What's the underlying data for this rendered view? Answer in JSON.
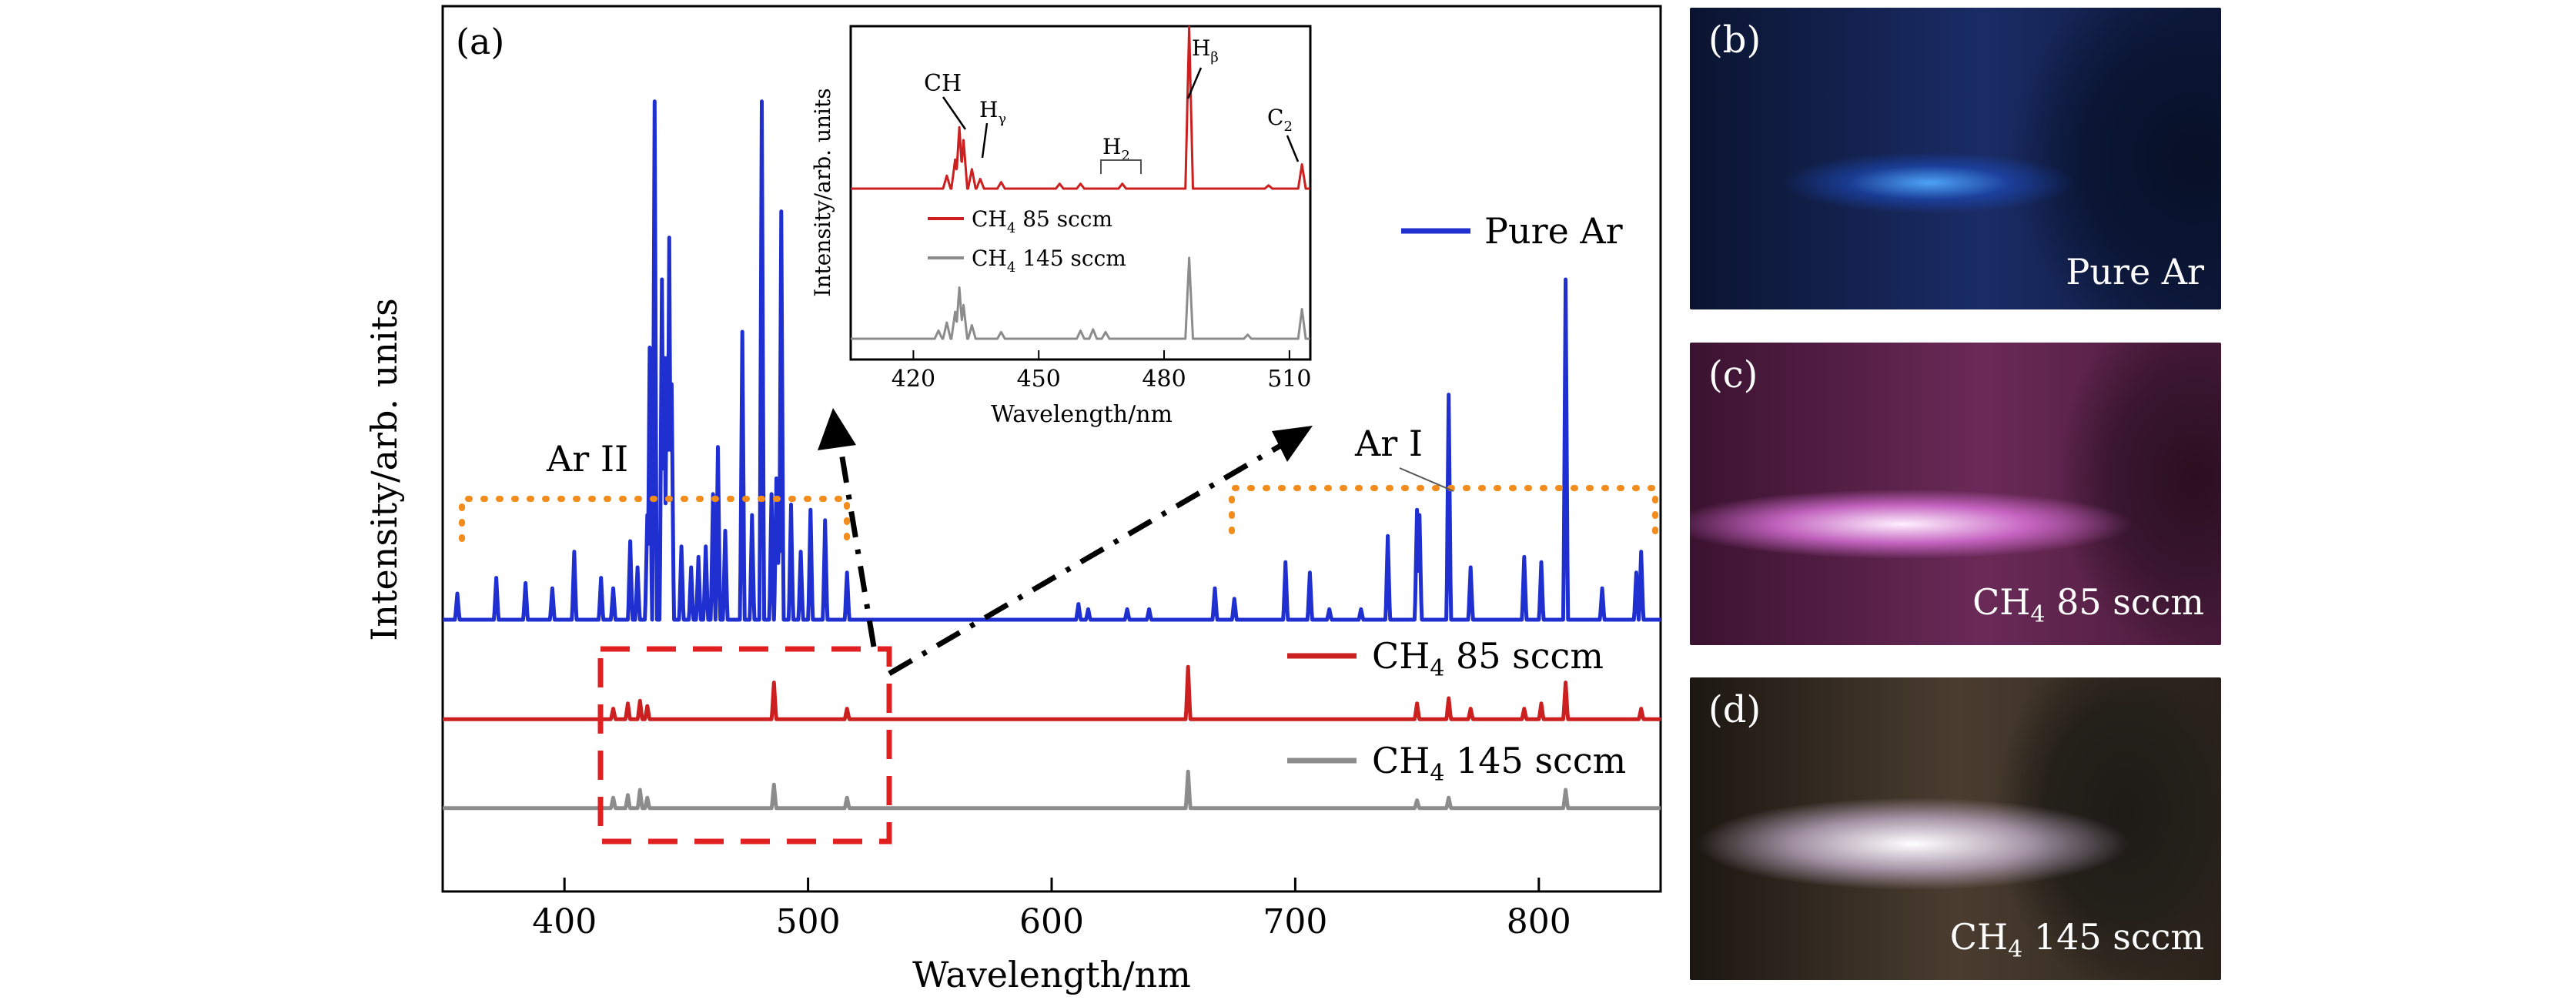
{
  "panel_a": {
    "label": "(a)",
    "chart_data": {
      "type": "line",
      "xlabel": "Wavelength/nm",
      "ylabel": "Intensity/arb. units",
      "xlim": [
        350,
        850
      ],
      "xticks": [
        400,
        500,
        600,
        700,
        800
      ],
      "series": [
        {
          "name": "Pure Ar",
          "color": "#1f2fd0",
          "baseline": 0.0,
          "peaks": [
            [
              356,
              0.05
            ],
            [
              372,
              0.08
            ],
            [
              384,
              0.07
            ],
            [
              395,
              0.06
            ],
            [
              404,
              0.13
            ],
            [
              415,
              0.08
            ],
            [
              420,
              0.06
            ],
            [
              427,
              0.15
            ],
            [
              430,
              0.1
            ],
            [
              434,
              0.2
            ],
            [
              435,
              0.52
            ],
            [
              437,
              0.99
            ],
            [
              440,
              0.65
            ],
            [
              441,
              0.5
            ],
            [
              442,
              0.5
            ],
            [
              443,
              0.73
            ],
            [
              444,
              0.45
            ],
            [
              448,
              0.14
            ],
            [
              452,
              0.1
            ],
            [
              455,
              0.12
            ],
            [
              458,
              0.14
            ],
            [
              461,
              0.24
            ],
            [
              463,
              0.33
            ],
            [
              466,
              0.17
            ],
            [
              473,
              0.55
            ],
            [
              477,
              0.2
            ],
            [
              481,
              0.99
            ],
            [
              485,
              0.24
            ],
            [
              487,
              0.27
            ],
            [
              488,
              0.15
            ],
            [
              489,
              0.78
            ],
            [
              493,
              0.22
            ],
            [
              497,
              0.13
            ],
            [
              501,
              0.21
            ],
            [
              507,
              0.19
            ],
            [
              516,
              0.09
            ],
            [
              611,
              0.03
            ],
            [
              615,
              0.02
            ],
            [
              631,
              0.02
            ],
            [
              640,
              0.02
            ],
            [
              667,
              0.06
            ],
            [
              675,
              0.04
            ],
            [
              696,
              0.11
            ],
            [
              706,
              0.09
            ],
            [
              714,
              0.02
            ],
            [
              727,
              0.02
            ],
            [
              738,
              0.16
            ],
            [
              750,
              0.21
            ],
            [
              751,
              0.2
            ],
            [
              763,
              0.43
            ],
            [
              772,
              0.1
            ],
            [
              794,
              0.12
            ],
            [
              801,
              0.11
            ],
            [
              811,
              0.65
            ],
            [
              826,
              0.06
            ],
            [
              840,
              0.09
            ],
            [
              842,
              0.13
            ]
          ]
        },
        {
          "name": "CH₄ 85 sccm",
          "color": "#cc1f1f",
          "baseline": -0.19,
          "peaks": [
            [
              420,
              0.02
            ],
            [
              426,
              0.03
            ],
            [
              431,
              0.035
            ],
            [
              434,
              0.025
            ],
            [
              486,
              0.07
            ],
            [
              516,
              0.02
            ],
            [
              656,
              0.1
            ],
            [
              750,
              0.03
            ],
            [
              763,
              0.04
            ],
            [
              772,
              0.02
            ],
            [
              794,
              0.02
            ],
            [
              801,
              0.03
            ],
            [
              811,
              0.07
            ],
            [
              842,
              0.02
            ]
          ]
        },
        {
          "name": "CH₄ 145 sccm",
          "color": "#8c8c8c",
          "baseline": -0.36,
          "peaks": [
            [
              420,
              0.02
            ],
            [
              426,
              0.025
            ],
            [
              431,
              0.035
            ],
            [
              434,
              0.02
            ],
            [
              486,
              0.045
            ],
            [
              516,
              0.02
            ],
            [
              656,
              0.07
            ],
            [
              750,
              0.015
            ],
            [
              763,
              0.02
            ],
            [
              811,
              0.035
            ]
          ]
        }
      ],
      "annotations": [
        "Ar II",
        "Ar I"
      ]
    }
  },
  "inset": {
    "chart_data": {
      "type": "line",
      "xlabel": "Wavelength/nm",
      "ylabel": "Intensity/arb. units",
      "xlim": [
        405,
        515
      ],
      "xticks": [
        420,
        450,
        480,
        510
      ],
      "series": [
        {
          "name": "CH₄ 85 sccm",
          "color": "#cc1f1f",
          "baseline": 0.0,
          "peaks": [
            [
              428,
              0.08
            ],
            [
              430,
              0.18
            ],
            [
              431,
              0.38
            ],
            [
              432,
              0.3
            ],
            [
              434,
              0.12
            ],
            [
              436,
              0.06
            ],
            [
              441,
              0.04
            ],
            [
              455,
              0.03
            ],
            [
              460,
              0.03
            ],
            [
              470,
              0.03
            ],
            [
              486,
              1.0
            ],
            [
              505,
              0.02
            ],
            [
              513,
              0.15
            ]
          ]
        },
        {
          "name": "CH₄ 145 sccm",
          "color": "#8c8c8c",
          "baseline": 0.0,
          "peaks": [
            [
              426,
              0.06
            ],
            [
              428,
              0.12
            ],
            [
              430,
              0.2
            ],
            [
              431,
              0.38
            ],
            [
              432,
              0.25
            ],
            [
              434,
              0.1
            ],
            [
              441,
              0.05
            ],
            [
              460,
              0.06
            ],
            [
              463,
              0.07
            ],
            [
              466,
              0.05
            ],
            [
              486,
              0.6
            ],
            [
              500,
              0.03
            ],
            [
              513,
              0.22
            ]
          ]
        }
      ],
      "annotations": {
        "ch": "CH",
        "h_gamma": "H",
        "h_gamma_sub": "γ",
        "h2": "H",
        "h2_sub": "2",
        "h_beta": "H",
        "h_beta_sub": "β",
        "c2": "C",
        "c2_sub": "2"
      },
      "legend": [
        {
          "base": "CH",
          "sub": "4",
          "rest": " 85 sccm"
        },
        {
          "base": "CH",
          "sub": "4",
          "rest": " 145 sccm"
        }
      ]
    }
  },
  "legend": [
    {
      "label": "Pure Ar",
      "color": "#1f2fd0"
    },
    {
      "base": "CH",
      "sub": "4",
      "rest": " 85 sccm",
      "color": "#cc1f1f"
    },
    {
      "base": "CH",
      "sub": "4",
      "rest": " 145 sccm",
      "color": "#8c8c8c"
    }
  ],
  "photos": [
    {
      "label": "(b)",
      "caption": "Pure Ar"
    },
    {
      "label": "(c)",
      "caption_base": "CH",
      "caption_sub": "4",
      "caption_rest": " 85 sccm"
    },
    {
      "label": "(d)",
      "caption_base": "CH",
      "caption_sub": "4",
      "caption_rest": " 145 sccm"
    }
  ]
}
